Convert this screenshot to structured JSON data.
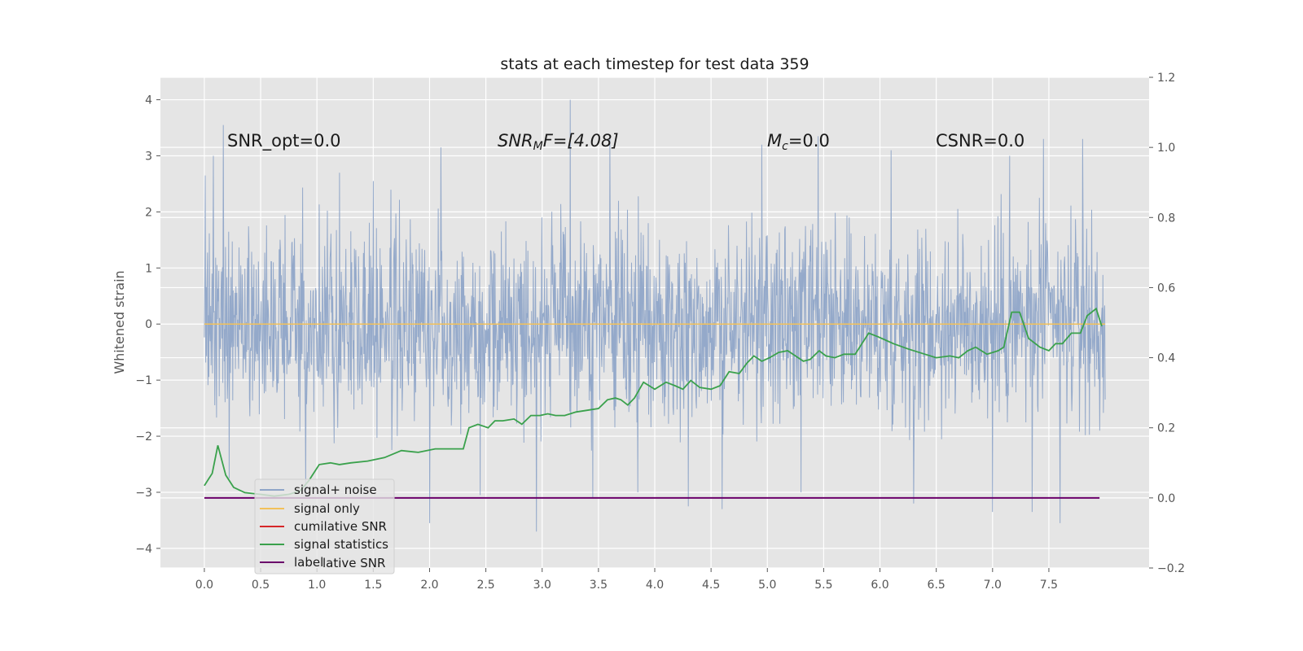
{
  "chart_data": {
    "type": "line",
    "title": "stats at each timestep for test data 359",
    "ylabel": "Whitened strain",
    "xlim": [
      -0.39,
      8.39
    ],
    "ylim": [
      -4.35,
      4.4
    ],
    "y2lim": [
      -0.2,
      1.2
    ],
    "x_ticks": [
      "0.0",
      "0.5",
      "1.0",
      "1.5",
      "2.0",
      "2.5",
      "3.0",
      "3.5",
      "4.0",
      "4.5",
      "5.0",
      "5.5",
      "6.0",
      "6.5",
      "7.0",
      "7.5"
    ],
    "y_ticks": [
      "−4",
      "−3",
      "−2",
      "−1",
      "0",
      "1",
      "2",
      "3",
      "4"
    ],
    "y2_ticks": [
      "−0.2",
      "0.0",
      "0.2",
      "0.4",
      "0.6",
      "0.8",
      "1.0",
      "1.2"
    ],
    "grid": true,
    "legend_position": "lower-left",
    "legend": [
      {
        "label": "signal+ noise",
        "color": "#8fa5c8"
      },
      {
        "label": "signal only",
        "color": "#f2c15a"
      },
      {
        "label": "cumilative SNR",
        "color": "#d62728"
      },
      {
        "label": "signal statistics",
        "color": "#3aa14c"
      },
      {
        "label": "label",
        "color": "#6a006a"
      }
    ],
    "legend_ghost_text": "lative SNR",
    "annotations": {
      "snr_opt": "SNR_opt=0.0",
      "snr_mf_base": "SNR",
      "snr_mf_sub": "M",
      "snr_mf_rest": "F=[4.08]",
      "mc_base": "M",
      "mc_sub": "c",
      "mc_rest": "=0.0",
      "csnr": "CSNR=0.0"
    },
    "series": [
      {
        "name": "signal+ noise",
        "color": "#8fa5c8",
        "axis": "left",
        "t_range": [
          0,
          8
        ],
        "points": 2000,
        "typical_band": [
          -1.9,
          2.0
        ],
        "peak_values": [
          [
            0.01,
            -3.9
          ],
          [
            0.01,
            2.65
          ],
          [
            0.08,
            3.0
          ],
          [
            0.17,
            3.55
          ],
          [
            0.22,
            -2.75
          ],
          [
            0.9,
            -3.0
          ],
          [
            1.2,
            2.7
          ],
          [
            1.5,
            2.55
          ],
          [
            2.0,
            -3.55
          ],
          [
            2.1,
            3.15
          ],
          [
            2.45,
            -3.05
          ],
          [
            2.95,
            -3.7
          ],
          [
            3.25,
            4.0
          ],
          [
            3.45,
            -3.1
          ],
          [
            3.6,
            3.35
          ],
          [
            3.85,
            -3.0
          ],
          [
            4.3,
            -3.25
          ],
          [
            4.6,
            -3.3
          ],
          [
            4.95,
            3.2
          ],
          [
            5.3,
            -3.0
          ],
          [
            5.45,
            3.35
          ],
          [
            6.1,
            3.1
          ],
          [
            6.3,
            -3.2
          ],
          [
            7.0,
            -3.35
          ],
          [
            7.15,
            3.0
          ],
          [
            7.35,
            -3.35
          ],
          [
            7.45,
            3.3
          ],
          [
            7.6,
            -3.55
          ],
          [
            7.8,
            3.3
          ],
          [
            7.95,
            -1.9
          ]
        ]
      },
      {
        "name": "signal only",
        "color": "#f2c15a",
        "axis": "left",
        "x": [
          0,
          8
        ],
        "y": [
          0,
          0
        ]
      },
      {
        "name": "signal statistics",
        "color": "#3aa14c",
        "axis": "right",
        "x": [
          0.0,
          0.07,
          0.12,
          0.19,
          0.26,
          0.36,
          0.5,
          0.62,
          0.75,
          0.85,
          0.93,
          1.02,
          1.12,
          1.2,
          1.3,
          1.45,
          1.6,
          1.75,
          1.9,
          2.05,
          2.18,
          2.3,
          2.35,
          2.43,
          2.52,
          2.58,
          2.65,
          2.75,
          2.82,
          2.9,
          2.98,
          3.05,
          3.12,
          3.2,
          3.3,
          3.4,
          3.5,
          3.58,
          3.65,
          3.7,
          3.76,
          3.82,
          3.9,
          4.0,
          4.1,
          4.18,
          4.25,
          4.32,
          4.4,
          4.5,
          4.58,
          4.66,
          4.75,
          4.82,
          4.88,
          4.95,
          5.02,
          5.1,
          5.18,
          5.25,
          5.32,
          5.38,
          5.46,
          5.52,
          5.6,
          5.68,
          5.78,
          5.84,
          5.9,
          5.98,
          6.05,
          6.12,
          6.25,
          6.4,
          6.5,
          6.62,
          6.7,
          6.78,
          6.85,
          6.95,
          7.05,
          7.1,
          7.17,
          7.24,
          7.32,
          7.42,
          7.5,
          7.56,
          7.62,
          7.7,
          7.78,
          7.84,
          7.92,
          7.97
        ],
        "y": [
          0.035,
          0.07,
          0.15,
          0.065,
          0.03,
          0.015,
          0.01,
          0.005,
          0.01,
          0.02,
          0.05,
          0.095,
          0.1,
          0.095,
          0.1,
          0.105,
          0.115,
          0.135,
          0.13,
          0.14,
          0.14,
          0.14,
          0.2,
          0.21,
          0.2,
          0.22,
          0.22,
          0.225,
          0.21,
          0.235,
          0.235,
          0.24,
          0.235,
          0.235,
          0.245,
          0.25,
          0.255,
          0.28,
          0.285,
          0.28,
          0.265,
          0.285,
          0.33,
          0.31,
          0.33,
          0.32,
          0.31,
          0.335,
          0.315,
          0.31,
          0.32,
          0.36,
          0.355,
          0.385,
          0.405,
          0.39,
          0.4,
          0.415,
          0.42,
          0.405,
          0.39,
          0.395,
          0.42,
          0.405,
          0.4,
          0.41,
          0.41,
          0.44,
          0.47,
          0.46,
          0.45,
          0.44,
          0.425,
          0.41,
          0.4,
          0.405,
          0.4,
          0.42,
          0.43,
          0.41,
          0.42,
          0.43,
          0.53,
          0.53,
          0.455,
          0.43,
          0.42,
          0.44,
          0.44,
          0.47,
          0.47,
          0.52,
          0.54,
          0.49
        ]
      },
      {
        "name": "label",
        "color": "#6a006a",
        "axis": "right",
        "x": [
          0,
          7.95
        ],
        "y": [
          0,
          0
        ]
      }
    ]
  }
}
